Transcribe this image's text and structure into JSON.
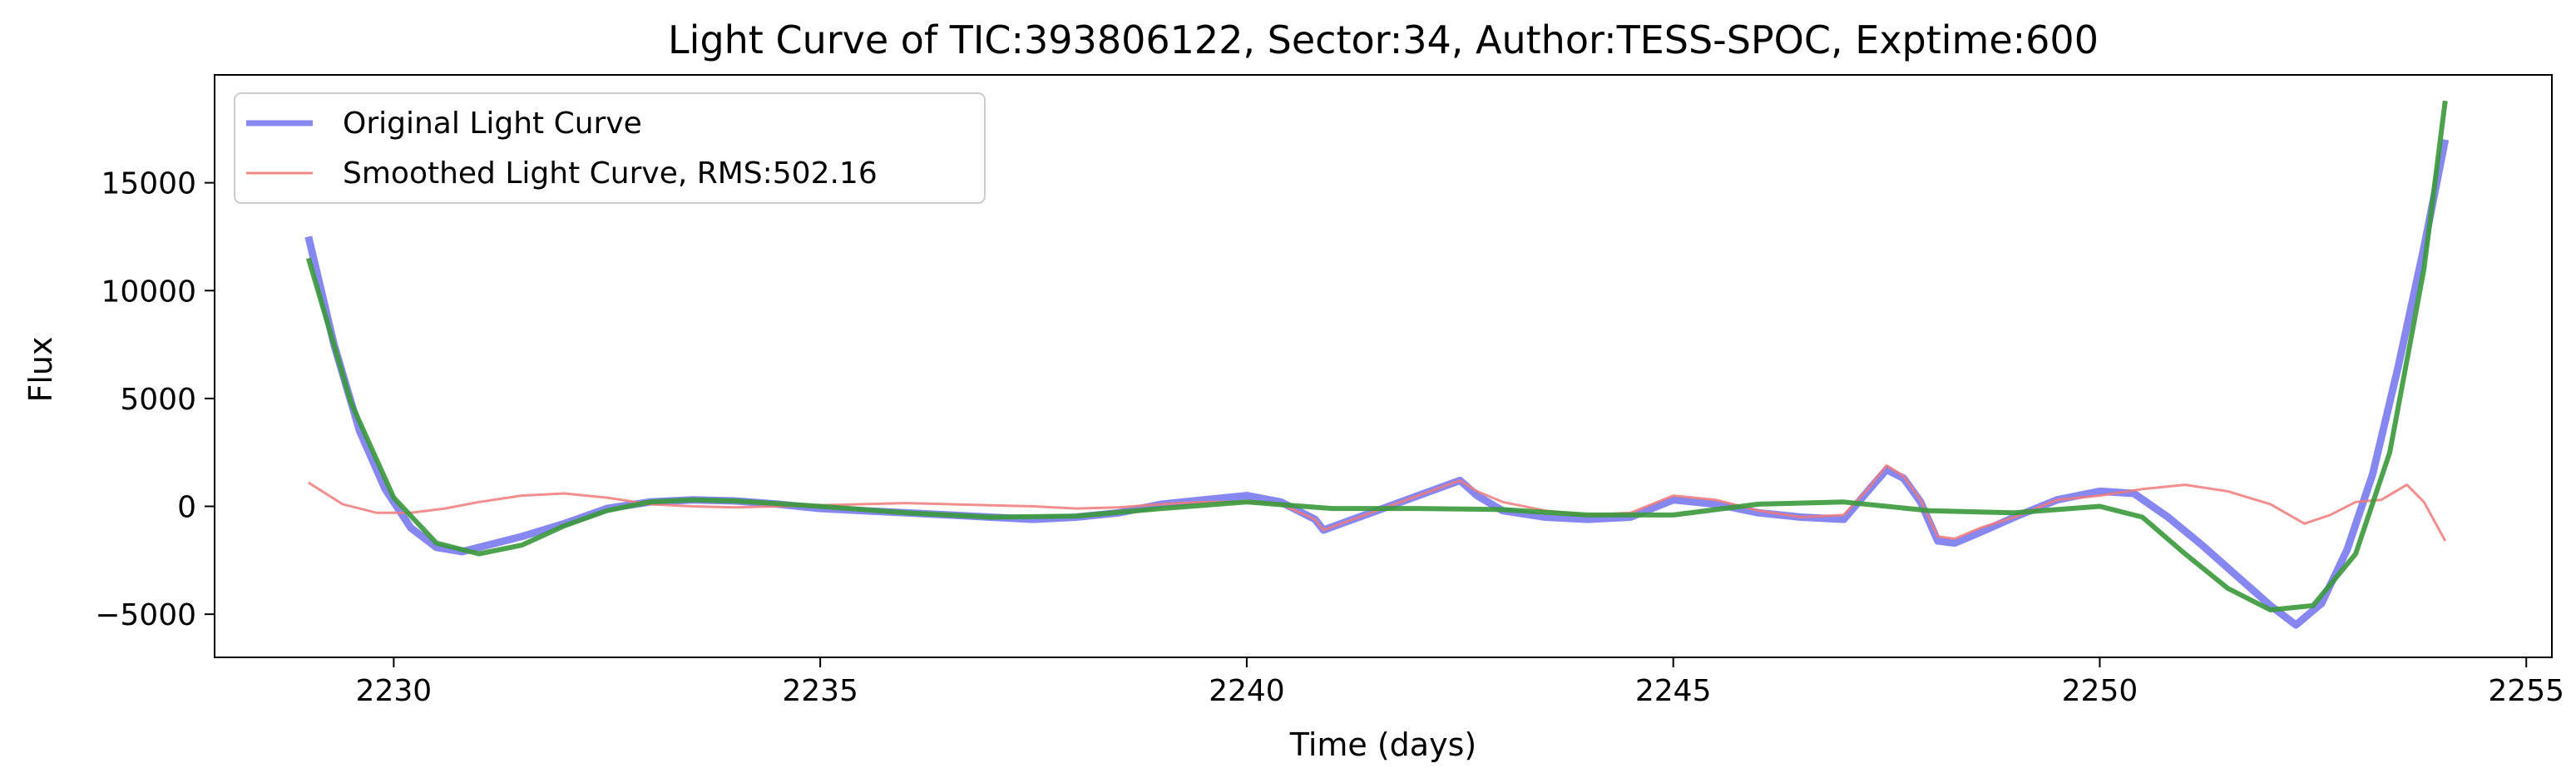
{
  "chart_data": {
    "type": "line",
    "title": "Light Curve of TIC:393806122, Sector:34, Author:TESS-SPOC, Exptime:600",
    "xlabel": "Time (days)",
    "ylabel": "Flux",
    "xlim": [
      2227.9,
      2255.3
    ],
    "ylim": [
      -7000,
      20000
    ],
    "grid": false,
    "legend_position": "top-left",
    "x_ticks": [
      2230,
      2235,
      2240,
      2245,
      2250,
      2255
    ],
    "y_ticks": [
      -5000,
      0,
      5000,
      10000,
      15000
    ],
    "colors": {
      "original": "#7a7af0",
      "smoothed": "#f07a7a",
      "fit": "#3a993a",
      "overlap": "#b0306a"
    },
    "series": [
      {
        "name": "Original Light Curve",
        "color": "#7a7af0",
        "x": [
          2229.0,
          2229.3,
          2229.6,
          2229.9,
          2230.2,
          2230.5,
          2230.8,
          2231.1,
          2231.5,
          2232.0,
          2232.5,
          2233.0,
          2233.5,
          2234.0,
          2234.5,
          2235.0,
          2235.5,
          2236.0,
          2236.5,
          2237.0,
          2237.5,
          2238.0,
          2238.5,
          2239.0,
          2239.5,
          2240.0,
          2240.4,
          2240.8,
          2240.9,
          2242.5,
          2242.7,
          2243.0,
          2243.5,
          2244.0,
          2244.5,
          2245.0,
          2245.5,
          2246.0,
          2246.5,
          2247.0,
          2247.3,
          2247.5,
          2247.7,
          2247.9,
          2248.1,
          2248.3,
          2248.6,
          2249.0,
          2249.5,
          2250.0,
          2250.4,
          2250.8,
          2251.2,
          2251.6,
          2252.0,
          2252.3,
          2252.6,
          2252.9,
          2253.2,
          2253.5,
          2253.8,
          2254.05
        ],
        "y": [
          12500,
          7500,
          3500,
          800,
          -1000,
          -1900,
          -2100,
          -1800,
          -1400,
          -800,
          -100,
          200,
          300,
          250,
          100,
          -100,
          -200,
          -300,
          -400,
          -500,
          -600,
          -500,
          -300,
          100,
          300,
          500,
          200,
          -600,
          -1100,
          1200,
          500,
          -200,
          -500,
          -600,
          -500,
          300,
          100,
          -300,
          -500,
          -600,
          800,
          1700,
          1300,
          200,
          -1600,
          -1700,
          -1200,
          -500,
          300,
          700,
          600,
          -500,
          -1800,
          -3200,
          -4600,
          -5500,
          -4500,
          -2000,
          1500,
          6500,
          12000,
          17000
        ]
      },
      {
        "name": "Smoothed Light Curve, RMS:502.16",
        "color": "#f07a7a",
        "x": [
          2229.0,
          2229.4,
          2229.8,
          2230.2,
          2230.6,
          2231.0,
          2231.5,
          2232.0,
          2232.5,
          2233.0,
          2233.5,
          2234.0,
          2234.5,
          2235.0,
          2235.5,
          2236.0,
          2236.5,
          2237.0,
          2237.5,
          2238.0,
          2238.5,
          2239.0,
          2239.5,
          2240.0,
          2240.4,
          2240.8,
          2240.9,
          2242.5,
          2242.7,
          2243.0,
          2243.5,
          2244.0,
          2244.5,
          2245.0,
          2245.5,
          2246.0,
          2246.5,
          2247.0,
          2247.3,
          2247.5,
          2247.7,
          2247.9,
          2248.1,
          2248.3,
          2248.6,
          2249.0,
          2249.5,
          2250.0,
          2250.5,
          2251.0,
          2251.5,
          2252.0,
          2252.4,
          2252.7,
          2253.0,
          2253.3,
          2253.6,
          2253.8,
          2254.05
        ],
        "y": [
          1100,
          100,
          -300,
          -300,
          -100,
          200,
          500,
          600,
          400,
          100,
          0,
          -50,
          0,
          50,
          100,
          150,
          100,
          50,
          0,
          -100,
          -50,
          100,
          200,
          200,
          100,
          -600,
          -1100,
          1200,
          700,
          200,
          -200,
          -400,
          -300,
          500,
          300,
          -200,
          -500,
          -400,
          900,
          1900,
          1400,
          300,
          -1400,
          -1500,
          -1000,
          -500,
          300,
          500,
          800,
          1000,
          700,
          100,
          -800,
          -400,
          200,
          300,
          1000,
          200,
          -1600
        ]
      },
      {
        "name": "",
        "color": "#3a993a",
        "x": [
          2229.0,
          2229.5,
          2230.0,
          2230.5,
          2231.0,
          2231.5,
          2232.0,
          2232.5,
          2233.0,
          2233.5,
          2234.0,
          2235.0,
          2236.0,
          2237.0,
          2238.0,
          2239.0,
          2240.0,
          2241.0,
          2242.0,
          2243.0,
          2244.0,
          2245.0,
          2246.0,
          2247.0,
          2248.0,
          2249.0,
          2250.0,
          2250.5,
          2251.0,
          2251.5,
          2252.0,
          2252.5,
          2253.0,
          2253.4,
          2253.8,
          2254.05
        ],
        "y": [
          11500,
          4800,
          400,
          -1700,
          -2200,
          -1800,
          -900,
          -200,
          200,
          300,
          250,
          0,
          -300,
          -500,
          -450,
          -100,
          200,
          -100,
          -100,
          -150,
          -400,
          -400,
          100,
          200,
          -200,
          -300,
          0,
          -500,
          -2200,
          -3800,
          -4800,
          -4600,
          -2200,
          2500,
          11000,
          18800
        ]
      }
    ]
  }
}
